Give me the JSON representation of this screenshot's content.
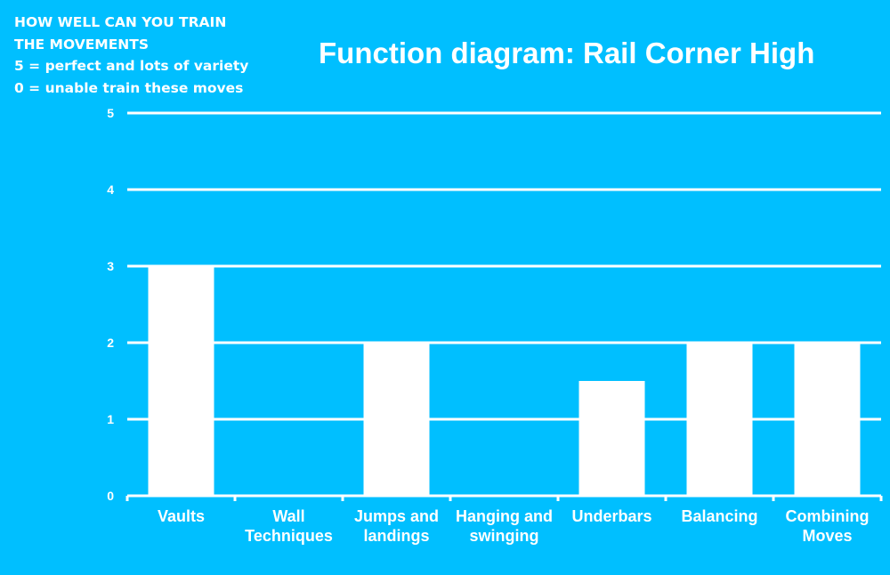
{
  "note": {
    "lines": [
      "HOW WELL CAN YOU TRAIN",
      "THE MOVEMENTS",
      "5 = perfect and lots of variety",
      "0 = unable train these moves"
    ]
  },
  "colors": {
    "background": "#00bfff",
    "bars": "#ffffff",
    "gridlines": "#ffffff",
    "text": "#ffffff"
  },
  "chart_data": {
    "type": "bar",
    "title": "Function diagram: Rail Corner High",
    "xlabel": "",
    "ylabel": "",
    "ylim": [
      0,
      5
    ],
    "yticks": [
      0,
      1,
      2,
      3,
      4,
      5
    ],
    "grid": true,
    "categories": [
      [
        "Vaults"
      ],
      [
        "Wall",
        "Techniques"
      ],
      [
        "Jumps and",
        "landings"
      ],
      [
        "Hanging and",
        "swinging"
      ],
      [
        "Underbars"
      ],
      [
        "Balancing"
      ],
      [
        "Combining",
        "Moves"
      ]
    ],
    "values": [
      3,
      0,
      2,
      0,
      1.5,
      2,
      2
    ]
  }
}
